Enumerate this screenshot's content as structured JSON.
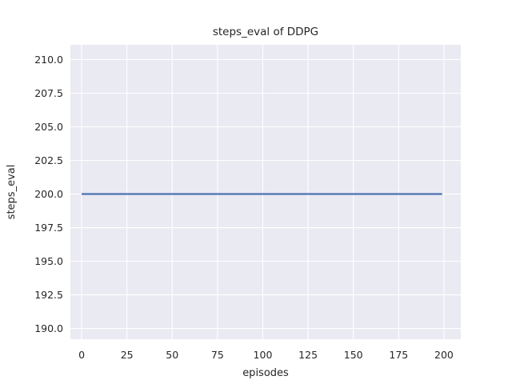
{
  "figure": {
    "background": "#ffffff",
    "plot_background": "#eaeaf2",
    "grid_color": "#ffffff",
    "text_color": "#262626",
    "accent_line_color": "#4c72b0"
  },
  "chart_data": {
    "type": "line",
    "title": "steps_eval of DDPG",
    "xlabel": "episodes",
    "ylabel": "steps_eval",
    "xlim": [
      -6.2,
      209.3
    ],
    "ylim": [
      189.2,
      211.1
    ],
    "xticks": [
      0,
      25,
      50,
      75,
      100,
      125,
      150,
      175,
      200
    ],
    "xtick_labels": [
      "0",
      "25",
      "50",
      "75",
      "100",
      "125",
      "150",
      "175",
      "200"
    ],
    "yticks": [
      190.0,
      192.5,
      195.0,
      197.5,
      200.0,
      202.5,
      205.0,
      207.5,
      210.0
    ],
    "ytick_labels": [
      "190.0",
      "192.5",
      "195.0",
      "197.5",
      "200.0",
      "202.5",
      "205.0",
      "207.5",
      "210.0"
    ],
    "grid": true,
    "legend": null,
    "series": [
      {
        "name": "DDPG steps_eval",
        "color": "#4c72b0",
        "line_width": 2.2,
        "constant_value": 200.0,
        "x_range": [
          0,
          199
        ],
        "x": [
          0,
          199
        ],
        "y": [
          200.0,
          200.0
        ]
      }
    ]
  }
}
